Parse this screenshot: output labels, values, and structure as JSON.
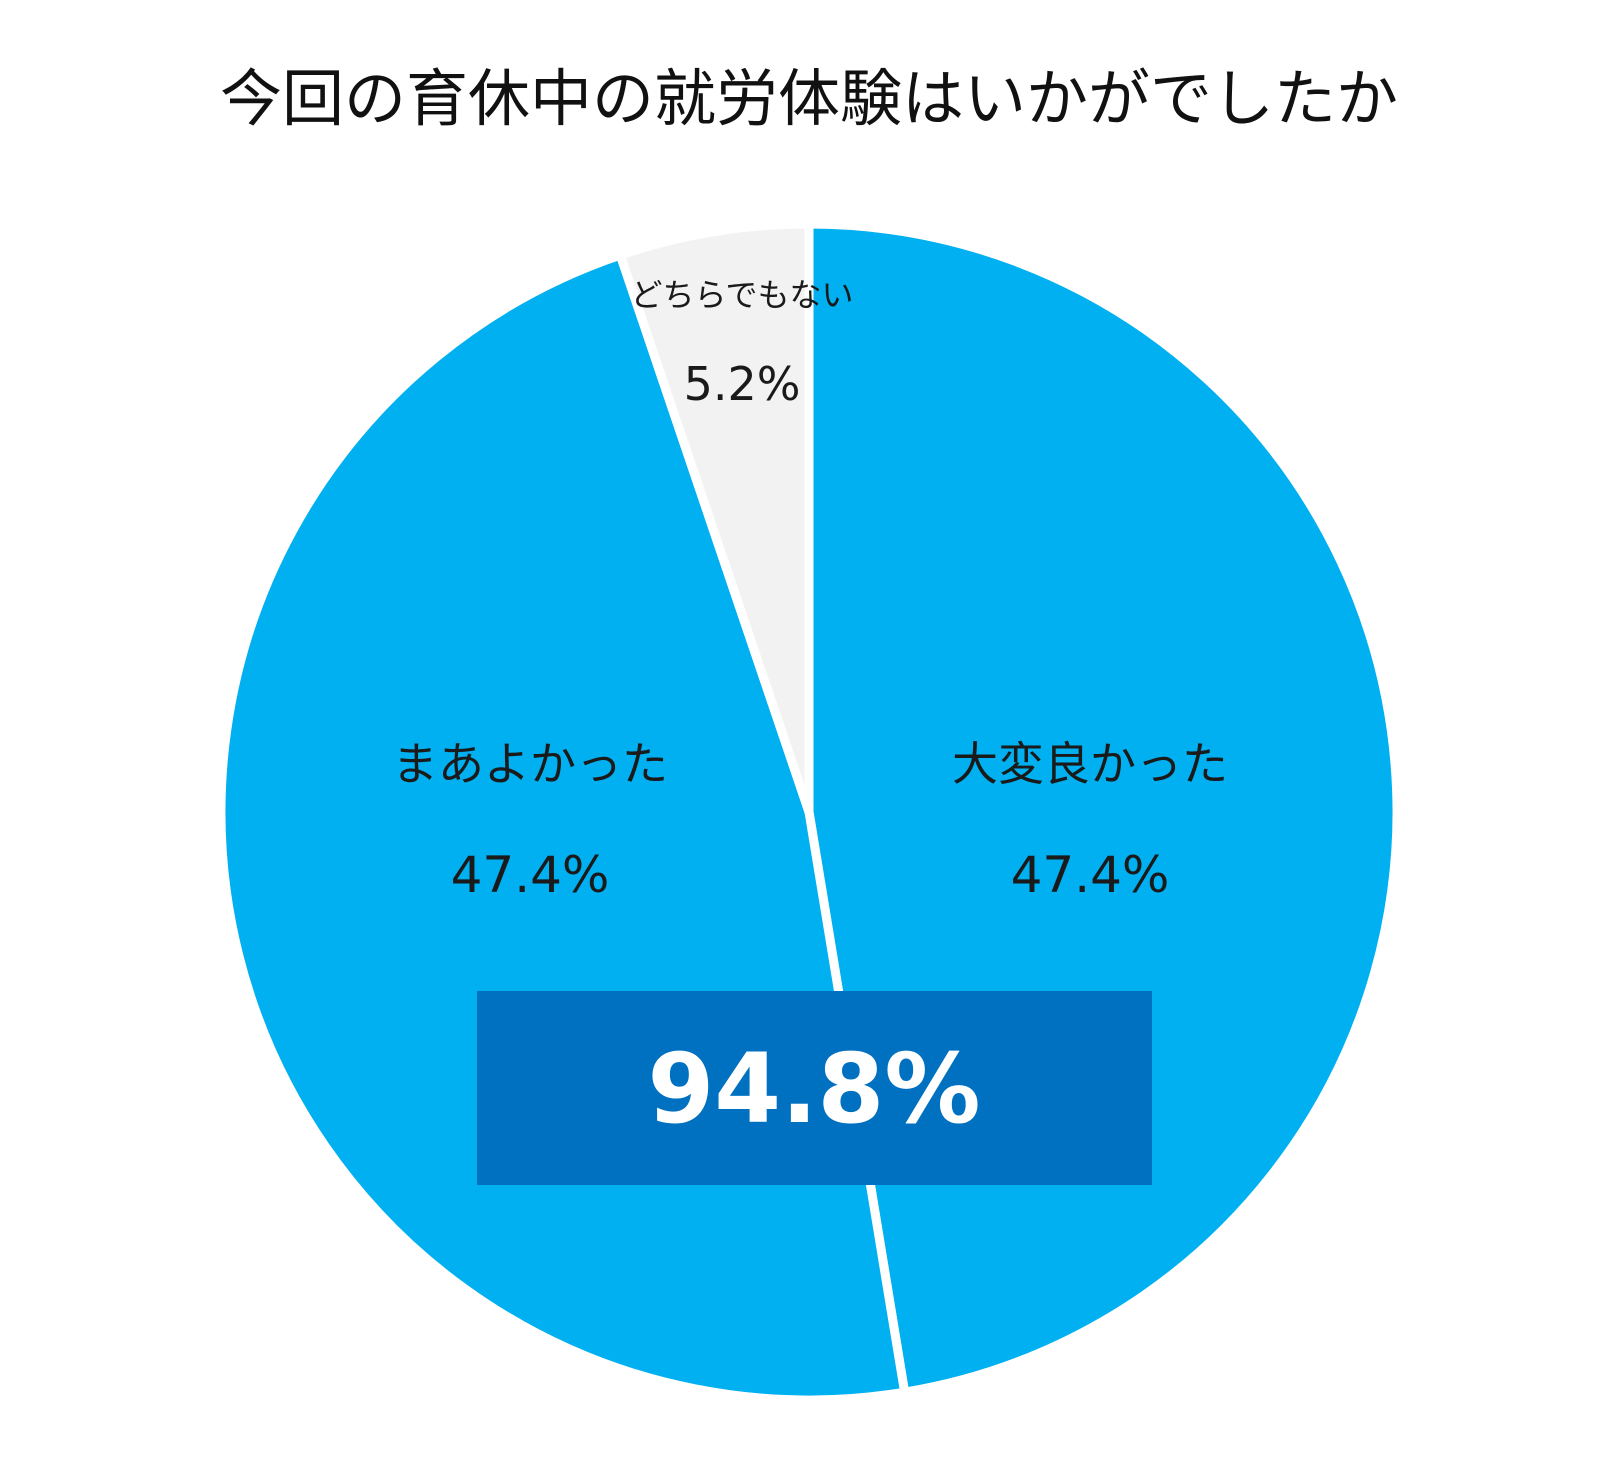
{
  "chart_data": {
    "type": "pie",
    "title": "今回の育休中の就労体験はいかがでしたか",
    "slices": [
      {
        "label": "大変良かった",
        "value": 47.4,
        "value_label": "47.4%",
        "color": "#00b0f0"
      },
      {
        "label": "まあよかった",
        "value": 47.4,
        "value_label": "47.4%",
        "color": "#00b0f0"
      },
      {
        "label": "どちらでもない",
        "value": 5.2,
        "value_label": "5.2%",
        "color": "#f2f2f2"
      }
    ],
    "start": "12 o'clock",
    "direction": "clockwise",
    "annotation": {
      "text": "94.8%",
      "color": "#0070c0",
      "text_color": "#ffffff"
    },
    "legend": "none"
  }
}
